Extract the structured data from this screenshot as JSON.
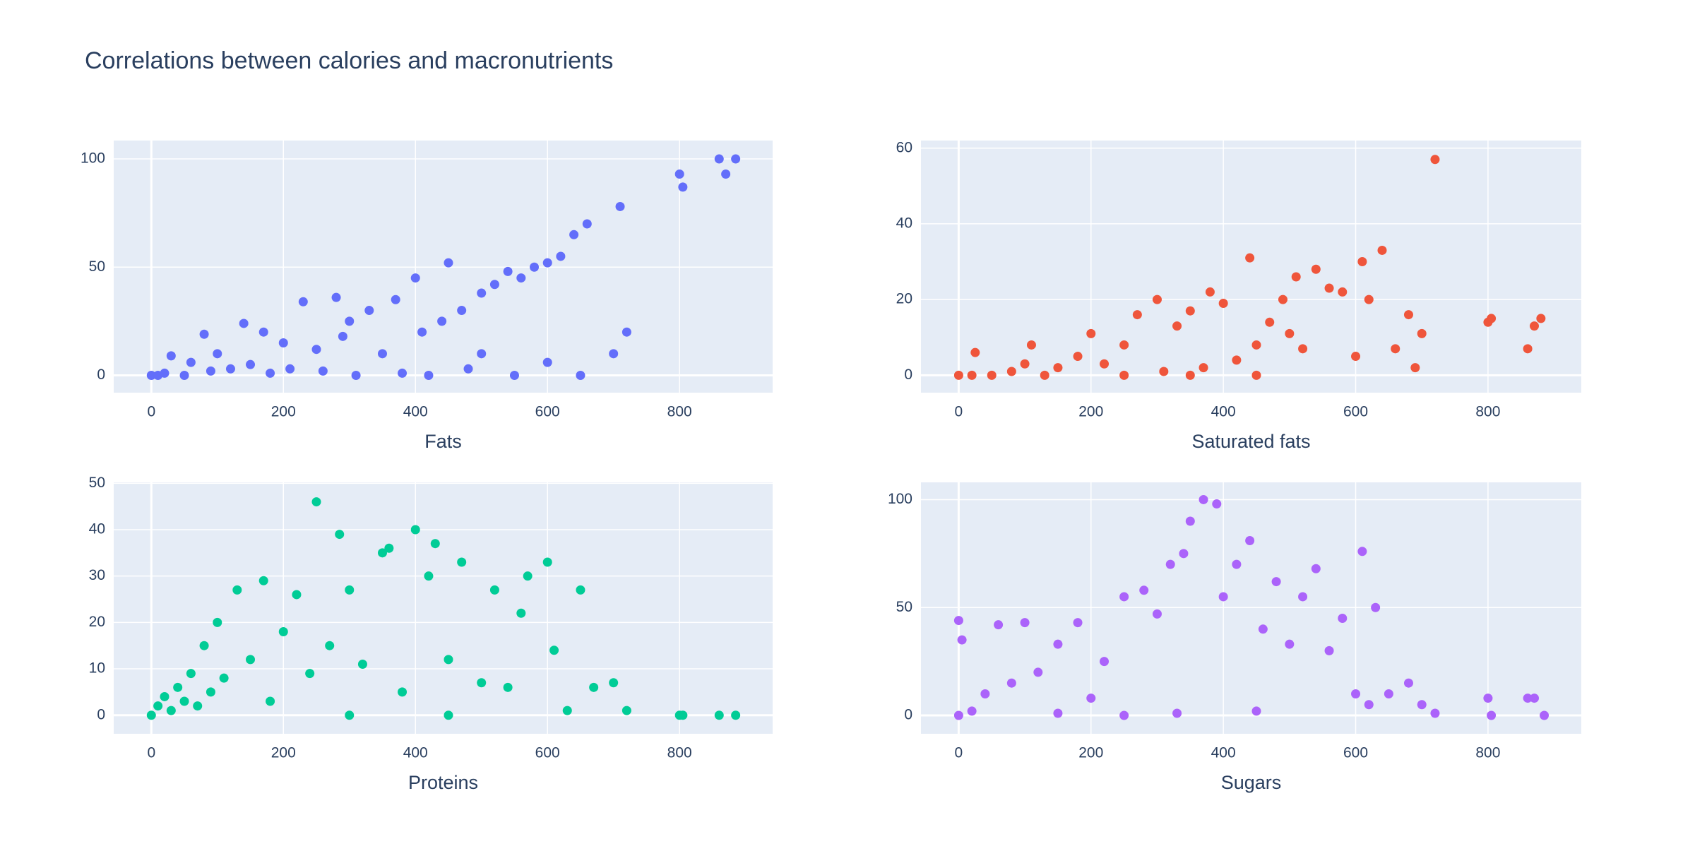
{
  "title": "Correlations between calories and macronutrients",
  "chart_data": [
    {
      "type": "scatter",
      "xlabel": "Fats",
      "color": "#636efa",
      "xlim": [
        -57,
        941
      ],
      "ylim": [
        -8,
        108.5
      ],
      "xticks": [
        0,
        200,
        400,
        600,
        800
      ],
      "yticks": [
        0,
        50,
        100
      ],
      "grid": true,
      "x": [
        0,
        10,
        20,
        30,
        50,
        60,
        80,
        90,
        100,
        120,
        140,
        150,
        170,
        180,
        200,
        210,
        230,
        250,
        260,
        280,
        290,
        300,
        310,
        330,
        350,
        370,
        380,
        400,
        410,
        420,
        440,
        450,
        470,
        480,
        500,
        520,
        540,
        560,
        580,
        600,
        620,
        640,
        660,
        700,
        710,
        720,
        800,
        805,
        860,
        870,
        885,
        600,
        650,
        550,
        500
      ],
      "values": [
        0,
        0,
        1,
        9,
        0,
        6,
        19,
        2,
        10,
        3,
        24,
        5,
        20,
        1,
        15,
        3,
        34,
        12,
        2,
        36,
        18,
        25,
        0,
        30,
        10,
        35,
        1,
        45,
        20,
        0,
        25,
        52,
        30,
        3,
        38,
        42,
        48,
        45,
        50,
        52,
        55,
        65,
        70,
        10,
        78,
        20,
        93,
        87,
        100,
        93,
        100,
        6,
        0,
        0,
        10
      ]
    },
    {
      "type": "scatter",
      "xlabel": "Saturated fats",
      "color": "#EF553B",
      "xlim": [
        -57,
        941
      ],
      "ylim": [
        -4.6,
        62
      ],
      "xticks": [
        0,
        200,
        400,
        600,
        800
      ],
      "yticks": [
        0,
        20,
        40,
        60
      ],
      "grid": true,
      "x": [
        0,
        20,
        25,
        50,
        80,
        100,
        110,
        150,
        180,
        200,
        220,
        250,
        270,
        300,
        310,
        330,
        350,
        370,
        380,
        400,
        420,
        440,
        450,
        470,
        490,
        500,
        510,
        520,
        540,
        560,
        580,
        600,
        610,
        620,
        640,
        660,
        680,
        690,
        700,
        720,
        800,
        805,
        860,
        870,
        880,
        130,
        250,
        350,
        450
      ],
      "values": [
        0,
        0,
        6,
        0,
        1,
        3,
        8,
        2,
        5,
        11,
        3,
        8,
        16,
        20,
        1,
        13,
        17,
        2,
        22,
        19,
        4,
        31,
        8,
        14,
        20,
        11,
        26,
        7,
        28,
        23,
        22,
        5,
        30,
        20,
        33,
        7,
        16,
        2,
        11,
        57,
        14,
        15,
        7,
        13,
        15,
        0,
        0,
        0,
        0
      ]
    },
    {
      "type": "scatter",
      "xlabel": "Proteins",
      "color": "#00cc96",
      "xlim": [
        -57,
        941
      ],
      "ylim": [
        -4,
        50.2
      ],
      "xticks": [
        0,
        200,
        400,
        600,
        800
      ],
      "yticks": [
        0,
        10,
        20,
        30,
        40,
        50
      ],
      "grid": true,
      "x": [
        0,
        10,
        20,
        30,
        40,
        50,
        60,
        70,
        80,
        90,
        100,
        110,
        130,
        150,
        170,
        180,
        200,
        220,
        240,
        250,
        270,
        285,
        300,
        320,
        350,
        360,
        380,
        400,
        420,
        430,
        450,
        470,
        500,
        520,
        540,
        560,
        570,
        600,
        610,
        630,
        650,
        670,
        700,
        720,
        800,
        805,
        860,
        885,
        450,
        300
      ],
      "values": [
        0,
        2,
        4,
        1,
        6,
        3,
        9,
        2,
        15,
        5,
        20,
        8,
        27,
        12,
        29,
        3,
        18,
        26,
        9,
        46,
        15,
        39,
        27,
        11,
        35,
        36,
        5,
        40,
        30,
        37,
        12,
        33,
        7,
        27,
        6,
        22,
        30,
        33,
        14,
        1,
        27,
        6,
        7,
        1,
        0,
        0,
        0,
        0,
        0,
        0
      ]
    },
    {
      "type": "scatter",
      "xlabel": "Sugars",
      "color": "#ab63fa",
      "xlim": [
        -57,
        941
      ],
      "ylim": [
        -8.5,
        108
      ],
      "xticks": [
        0,
        200,
        400,
        600,
        800
      ],
      "yticks": [
        0,
        50,
        100
      ],
      "grid": true,
      "x": [
        0,
        0,
        5,
        20,
        40,
        60,
        80,
        100,
        120,
        150,
        180,
        200,
        220,
        250,
        280,
        300,
        320,
        340,
        350,
        370,
        390,
        400,
        420,
        440,
        460,
        480,
        500,
        520,
        540,
        560,
        580,
        600,
        610,
        620,
        630,
        650,
        680,
        700,
        720,
        800,
        805,
        860,
        870,
        885,
        250,
        330,
        450,
        150
      ],
      "values": [
        0,
        44,
        35,
        2,
        10,
        42,
        15,
        43,
        20,
        33,
        43,
        8,
        25,
        55,
        58,
        47,
        70,
        75,
        90,
        100,
        98,
        55,
        70,
        81,
        40,
        62,
        33,
        55,
        68,
        30,
        45,
        10,
        76,
        5,
        50,
        10,
        15,
        5,
        1,
        8,
        0,
        8,
        8,
        0,
        0,
        1,
        2,
        1
      ]
    }
  ]
}
